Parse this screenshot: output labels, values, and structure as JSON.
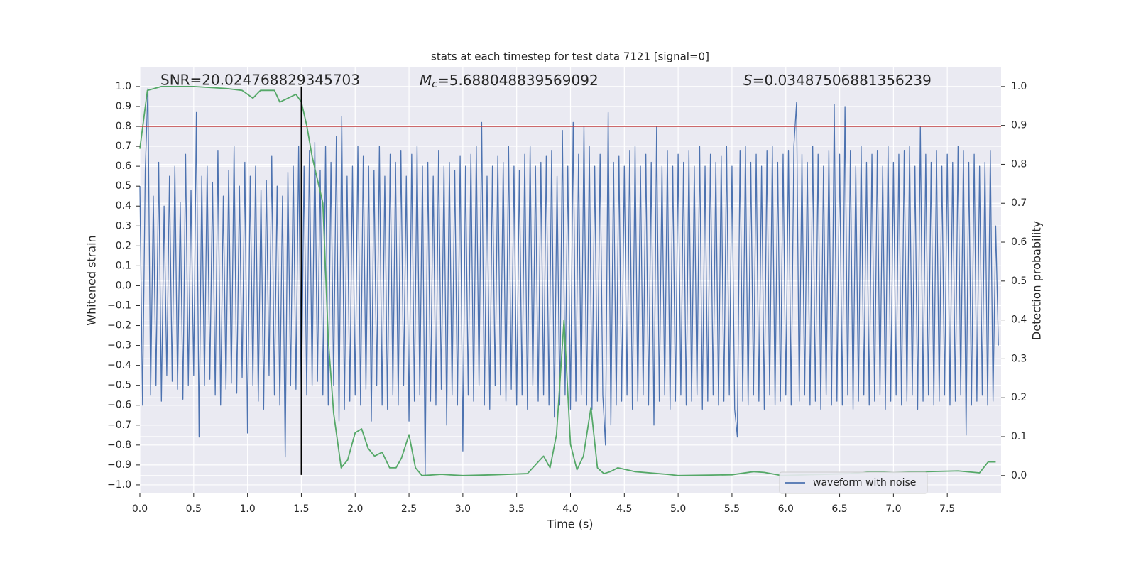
{
  "chart_data": {
    "type": "line",
    "title": "stats at each timestep for test data 7121 [signal=0]",
    "xlabel": "Time (s)",
    "ylabel": "Whitened strain",
    "y2label": "Detection probability",
    "annotations": [
      {
        "text": "SNR=20.024768829345703"
      },
      {
        "symbol": "M",
        "subscript": "c",
        "text": "=5.688048839569092"
      },
      {
        "symbol": "S",
        "text": "=0.03487506881356239"
      }
    ],
    "xlim": [
      0,
      8.0
    ],
    "xticks": [
      {
        "value": 0,
        "label": "0.0"
      },
      0.5,
      {
        "value": 1,
        "label": "1.0"
      },
      1.5,
      {
        "value": 2,
        "label": "2.0"
      },
      2.5,
      {
        "value": 3,
        "label": "3.0"
      },
      3.5,
      {
        "value": 4,
        "label": "4.0"
      },
      4.5,
      {
        "value": 5,
        "label": "5.0"
      },
      5.5,
      {
        "value": 6,
        "label": "6.0"
      },
      6.5,
      {
        "value": 7,
        "label": "7.0"
      },
      7.5
    ],
    "ylim": [
      -1.043,
      1.096
    ],
    "yticks": [
      {
        "value": -1,
        "label": "−1.0"
      },
      {
        "value": -0.9,
        "label": "−0.9"
      },
      {
        "value": -0.8,
        "label": "−0.8"
      },
      {
        "value": -0.7,
        "label": "−0.7"
      },
      {
        "value": -0.6,
        "label": "−0.6"
      },
      {
        "value": -0.5,
        "label": "−0.5"
      },
      {
        "value": -0.4,
        "label": "−0.4"
      },
      {
        "value": -0.3,
        "label": "−0.3"
      },
      {
        "value": -0.2,
        "label": "−0.2"
      },
      {
        "value": -0.1,
        "label": "−0.1"
      },
      {
        "value": 0,
        "label": "0.0"
      },
      0.1,
      0.2,
      0.3,
      0.4,
      0.5,
      0.6,
      0.7,
      0.8,
      0.9,
      {
        "value": 1,
        "label": "1.0"
      }
    ],
    "y2lim": [
      -0.046,
      1.049
    ],
    "y2ticks": [
      {
        "value": 0,
        "label": "0.0"
      },
      0.1,
      0.2,
      0.3,
      0.4,
      0.5,
      0.6,
      0.7,
      0.8,
      0.9,
      {
        "value": 1,
        "label": "1.0"
      }
    ],
    "grid": true,
    "legend": "lower right",
    "hlines": [
      {
        "y": 0.8,
        "color": "#c03d3e"
      }
    ],
    "vlines": [
      {
        "x": 1.5,
        "ymin": -0.95,
        "ymax": 1.0,
        "color": "#000000"
      }
    ],
    "series": [
      {
        "name": "waveform with noise",
        "color": "#4c72b0",
        "x": [
          0,
          0.025,
          0.05,
          0.075,
          0.1,
          0.125,
          0.15,
          0.175,
          0.2,
          0.225,
          0.25,
          0.275,
          0.3,
          0.325,
          0.35,
          0.375,
          0.4,
          0.425,
          0.45,
          0.475,
          0.5,
          0.525,
          0.55,
          0.575,
          0.6,
          0.625,
          0.65,
          0.675,
          0.7,
          0.725,
          0.75,
          0.775,
          0.8,
          0.825,
          0.85,
          0.875,
          0.9,
          0.925,
          0.95,
          0.975,
          1,
          1.025,
          1.05,
          1.075,
          1.1,
          1.125,
          1.15,
          1.175,
          1.2,
          1.225,
          1.25,
          1.275,
          1.3,
          1.325,
          1.35,
          1.375,
          1.4,
          1.425,
          1.45,
          1.475,
          1.5,
          1.525,
          1.55,
          1.575,
          1.6,
          1.625,
          1.65,
          1.675,
          1.7,
          1.725,
          1.75,
          1.775,
          1.8,
          1.825,
          1.85,
          1.875,
          1.9,
          1.925,
          1.95,
          1.975,
          2,
          2.025,
          2.05,
          2.075,
          2.1,
          2.125,
          2.15,
          2.175,
          2.2,
          2.225,
          2.25,
          2.275,
          2.3,
          2.325,
          2.35,
          2.375,
          2.4,
          2.425,
          2.45,
          2.475,
          2.5,
          2.525,
          2.55,
          2.575,
          2.6,
          2.625,
          2.65,
          2.675,
          2.7,
          2.725,
          2.75,
          2.775,
          2.8,
          2.825,
          2.85,
          2.875,
          2.9,
          2.925,
          2.95,
          2.975,
          3,
          3.025,
          3.05,
          3.075,
          3.1,
          3.125,
          3.15,
          3.175,
          3.2,
          3.225,
          3.25,
          3.275,
          3.3,
          3.325,
          3.35,
          3.375,
          3.4,
          3.425,
          3.45,
          3.475,
          3.5,
          3.525,
          3.55,
          3.575,
          3.6,
          3.625,
          3.65,
          3.675,
          3.7,
          3.725,
          3.75,
          3.775,
          3.8,
          3.825,
          3.85,
          3.875,
          3.9,
          3.925,
          3.95,
          3.975,
          4,
          4.025,
          4.05,
          4.075,
          4.1,
          4.125,
          4.15,
          4.175,
          4.2,
          4.225,
          4.25,
          4.275,
          4.3,
          4.325,
          4.35,
          4.375,
          4.4,
          4.425,
          4.45,
          4.475,
          4.5,
          4.525,
          4.55,
          4.575,
          4.6,
          4.625,
          4.65,
          4.675,
          4.7,
          4.725,
          4.75,
          4.775,
          4.8,
          4.825,
          4.85,
          4.875,
          4.9,
          4.925,
          4.95,
          4.975,
          5,
          5.025,
          5.05,
          5.075,
          5.1,
          5.125,
          5.15,
          5.175,
          5.2,
          5.225,
          5.25,
          5.275,
          5.3,
          5.325,
          5.35,
          5.375,
          5.4,
          5.425,
          5.45,
          5.475,
          5.5,
          5.525,
          5.55,
          5.575,
          5.6,
          5.625,
          5.65,
          5.675,
          5.7,
          5.725,
          5.75,
          5.775,
          5.8,
          5.825,
          5.85,
          5.875,
          5.9,
          5.925,
          5.95,
          5.975,
          6,
          6.025,
          6.05,
          6.075,
          6.1,
          6.125,
          6.15,
          6.175,
          6.2,
          6.225,
          6.25,
          6.275,
          6.3,
          6.325,
          6.35,
          6.375,
          6.4,
          6.425,
          6.45,
          6.475,
          6.5,
          6.525,
          6.55,
          6.575,
          6.6,
          6.625,
          6.65,
          6.675,
          6.7,
          6.725,
          6.75,
          6.775,
          6.8,
          6.825,
          6.85,
          6.875,
          6.9,
          6.925,
          6.95,
          6.975,
          7,
          7.025,
          7.05,
          7.075,
          7.1,
          7.125,
          7.15,
          7.175,
          7.2,
          7.225,
          7.25,
          7.275,
          7.3,
          7.325,
          7.35,
          7.375,
          7.4,
          7.425,
          7.45,
          7.475,
          7.5,
          7.525,
          7.55,
          7.575,
          7.6,
          7.625,
          7.65,
          7.675,
          7.7,
          7.725,
          7.75,
          7.775,
          7.8,
          7.825,
          7.85,
          7.875,
          7.9,
          7.925,
          7.95,
          7.975
        ],
        "values": [
          0.5,
          -0.6,
          0.58,
          0.99,
          -0.55,
          0.45,
          -0.5,
          0.62,
          -0.58,
          0.4,
          -0.45,
          0.55,
          -0.48,
          0.6,
          -0.52,
          0.42,
          -0.57,
          0.66,
          -0.5,
          0.48,
          -0.45,
          0.87,
          -0.76,
          0.55,
          -0.5,
          0.6,
          -0.47,
          0.52,
          -0.55,
          0.68,
          -0.6,
          0.45,
          -0.52,
          0.58,
          -0.49,
          0.7,
          -0.54,
          0.5,
          -0.46,
          0.62,
          -0.74,
          0.55,
          -0.5,
          0.6,
          -0.58,
          0.48,
          -0.62,
          0.53,
          -0.45,
          0.65,
          -0.55,
          0.5,
          -0.6,
          0.45,
          -0.86,
          0.57,
          -0.5,
          0.6,
          -0.52,
          0.7,
          -0.63,
          0.6,
          -0.55,
          0.68,
          -0.5,
          0.72,
          -0.48,
          0.58,
          -0.55,
          0.7,
          -0.6,
          0.62,
          -0.5,
          0.75,
          -0.68,
          0.85,
          -0.62,
          0.55,
          -0.58,
          0.6,
          -0.55,
          0.7,
          -0.6,
          0.65,
          -0.52,
          0.6,
          -0.68,
          0.58,
          -0.5,
          0.7,
          -0.6,
          0.55,
          -0.62,
          0.66,
          -0.55,
          0.62,
          -0.6,
          0.68,
          -0.5,
          0.55,
          -0.68,
          0.66,
          -0.58,
          0.7,
          -0.55,
          0.6,
          -0.95,
          0.62,
          -0.58,
          0.55,
          -0.6,
          0.68,
          -0.52,
          0.6,
          -0.7,
          0.62,
          -0.55,
          0.58,
          -0.6,
          0.65,
          -0.83,
          0.6,
          -0.55,
          0.66,
          -0.58,
          0.7,
          -0.5,
          0.82,
          -0.6,
          0.55,
          -0.62,
          0.6,
          -0.5,
          0.65,
          -0.55,
          0.62,
          -0.58,
          0.7,
          -0.52,
          0.6,
          -0.6,
          0.58,
          -0.55,
          0.66,
          -0.62,
          0.7,
          -0.5,
          0.6,
          -0.58,
          0.62,
          -0.55,
          0.65,
          -0.6,
          0.68,
          -0.66,
          0.55,
          -0.6,
          0.78,
          -0.55,
          0.6,
          -0.62,
          0.82,
          -0.58,
          0.66,
          -0.55,
          0.8,
          -0.6,
          0.7,
          -0.62,
          0.6,
          -0.58,
          0.66,
          -0.55,
          -0.8,
          0.87,
          -0.7,
          0.62,
          -0.6,
          0.65,
          -0.58,
          0.6,
          -0.55,
          0.68,
          -0.62,
          0.7,
          -0.58,
          0.6,
          -0.55,
          0.66,
          -0.6,
          0.62,
          -0.7,
          0.8,
          -0.58,
          0.6,
          -0.55,
          0.68,
          -0.62,
          0.6,
          -0.58,
          0.66,
          -0.55,
          0.62,
          -0.6,
          0.68,
          -0.58,
          0.6,
          -0.55,
          0.7,
          -0.62,
          0.6,
          -0.58,
          0.66,
          -0.55,
          0.62,
          -0.6,
          0.65,
          -0.58,
          0.7,
          -0.55,
          0.6,
          -0.62,
          -0.76,
          0.68,
          -0.58,
          0.7,
          -0.6,
          0.62,
          -0.55,
          0.66,
          -0.58,
          0.6,
          -0.62,
          0.68,
          -0.55,
          0.7,
          -0.6,
          0.62,
          -0.58,
          0.66,
          -0.55,
          0.68,
          -0.6,
          0.7,
          0.92,
          -0.58,
          0.66,
          -0.55,
          0.62,
          -0.6,
          0.7,
          -0.58,
          0.66,
          -0.62,
          0.6,
          -0.55,
          0.68,
          -0.6,
          0.91,
          -0.58,
          0.66,
          -0.6,
          0.9,
          -0.55,
          0.68,
          -0.62,
          0.6,
          -0.58,
          0.7,
          -0.55,
          0.62,
          -0.6,
          0.66,
          -0.58,
          0.68,
          -0.55,
          0.6,
          -0.62,
          0.7,
          -0.58,
          0.62,
          -0.55,
          0.66,
          -0.6,
          0.68,
          -0.58,
          0.7,
          -0.55,
          0.6,
          -0.62,
          0.8,
          -0.58,
          0.66,
          -0.55,
          0.62,
          -0.6,
          0.68,
          -0.58,
          0.6,
          -0.55,
          0.66,
          -0.6,
          0.62,
          -0.58,
          0.7,
          -0.55,
          0.68,
          -0.75,
          0.62,
          -0.6,
          0.66,
          -0.58,
          0.6,
          -0.55,
          0.62,
          -0.6,
          0.68,
          -0.58,
          0.3,
          -0.3
        ]
      },
      {
        "axis": "y2",
        "color": "#55a868",
        "x": [
          0,
          0.07,
          0.2,
          0.5,
          0.8,
          0.95,
          1.05,
          1.12,
          1.25,
          1.3,
          1.45,
          1.5,
          1.55,
          1.6,
          1.7,
          1.75,
          1.8,
          1.87,
          1.93,
          2.0,
          2.06,
          2.12,
          2.18,
          2.25,
          2.32,
          2.38,
          2.43,
          2.5,
          2.56,
          2.62,
          2.8,
          3.0,
          3.3,
          3.6,
          3.75,
          3.81,
          3.87,
          3.94,
          4.0,
          4.06,
          4.12,
          4.19,
          4.25,
          4.31,
          4.37,
          4.44,
          4.6,
          4.9,
          5.0,
          5.5,
          5.7,
          5.8,
          5.96,
          6.2,
          6.6,
          6.8,
          7.0,
          7.3,
          7.6,
          7.8,
          7.88,
          7.95
        ],
        "values": [
          0.84,
          0.99,
          1.0,
          1.0,
          0.995,
          0.99,
          0.97,
          0.99,
          0.99,
          0.96,
          0.98,
          0.96,
          0.9,
          0.82,
          0.7,
          0.35,
          0.16,
          0.02,
          0.04,
          0.11,
          0.12,
          0.07,
          0.05,
          0.06,
          0.02,
          0.02,
          0.045,
          0.105,
          0.02,
          0.0,
          0.003,
          0.0,
          0.002,
          0.005,
          0.05,
          0.02,
          0.105,
          0.4,
          0.08,
          0.015,
          0.05,
          0.175,
          0.02,
          0.005,
          0.01,
          0.02,
          0.01,
          0.003,
          0.0,
          0.002,
          0.01,
          0.008,
          0.0,
          0.002,
          0.005,
          0.01,
          0.008,
          0.01,
          0.012,
          0.007,
          0.035,
          0.035
        ]
      }
    ]
  }
}
